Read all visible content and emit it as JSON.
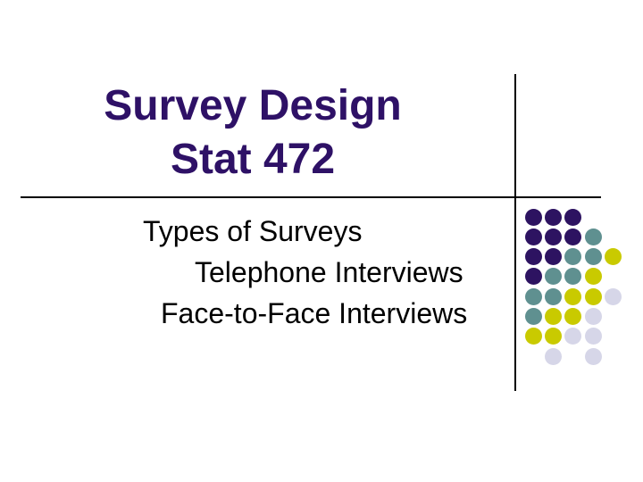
{
  "slide": {
    "title_line1": "Survey Design",
    "title_line2": "Stat 472",
    "body_lines": [
      "Types of Surveys",
      "Telephone Interviews",
      "Face-to-Face Interviews"
    ]
  },
  "colors": {
    "title_text": "#2e1166",
    "body_text": "#000000",
    "divider_line": "#000000",
    "dot_purple": "#2d1361",
    "dot_teal": "#5f9090",
    "dot_yellow": "#c9ca00",
    "dot_lavender": "#d6d6e8"
  },
  "decoration": {
    "dot_grid_pattern": [
      [
        "P",
        "P",
        "P",
        "",
        ""
      ],
      [
        "P",
        "P",
        "P",
        "T",
        ""
      ],
      [
        "P",
        "P",
        "T",
        "T",
        "Y"
      ],
      [
        "P",
        "T",
        "T",
        "Y",
        ""
      ],
      [
        "T",
        "T",
        "Y",
        "Y",
        "L"
      ],
      [
        "T",
        "Y",
        "Y",
        "L",
        ""
      ],
      [
        "Y",
        "Y",
        "L",
        "L",
        ""
      ],
      [
        "",
        "L",
        "",
        "L",
        ""
      ]
    ]
  }
}
